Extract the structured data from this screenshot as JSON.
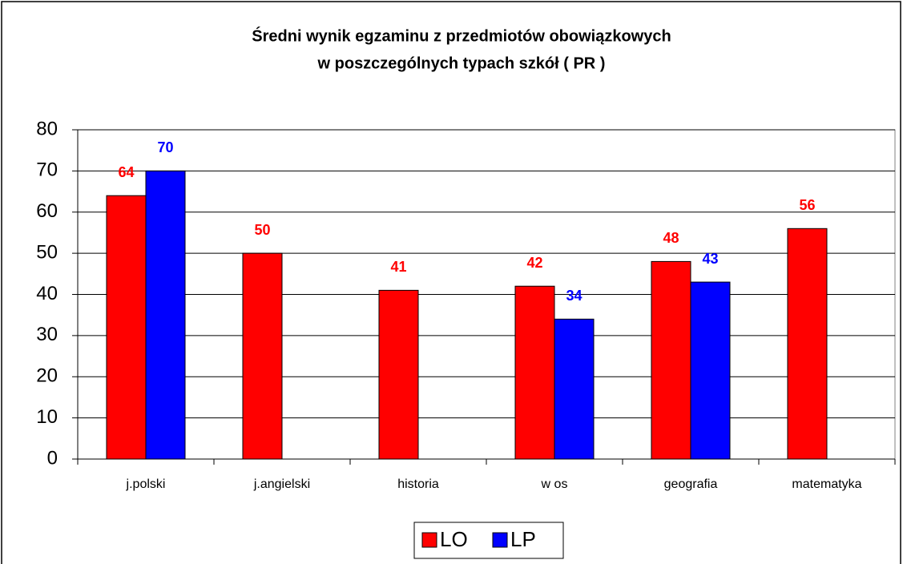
{
  "chart_data": {
    "type": "bar",
    "title": [
      "Średni wynik egzaminu z przedmiotów obowiązkowych",
      "w poszczególnych typach szkół ( PR )"
    ],
    "categories": [
      "j.polski",
      "j.angielski",
      "historia",
      "w os",
      "geografia",
      "matematyka"
    ],
    "series": [
      {
        "name": "LO",
        "color": "#ff0000",
        "values": [
          64,
          50,
          41,
          42,
          48,
          56
        ]
      },
      {
        "name": "LP",
        "color": "#0000ff",
        "values": [
          70,
          null,
          null,
          34,
          43,
          null
        ]
      }
    ],
    "ylim": [
      0,
      80
    ],
    "yticks": [
      0,
      10,
      20,
      30,
      40,
      50,
      60,
      70,
      80
    ],
    "grid": true,
    "legend": "bottom"
  }
}
